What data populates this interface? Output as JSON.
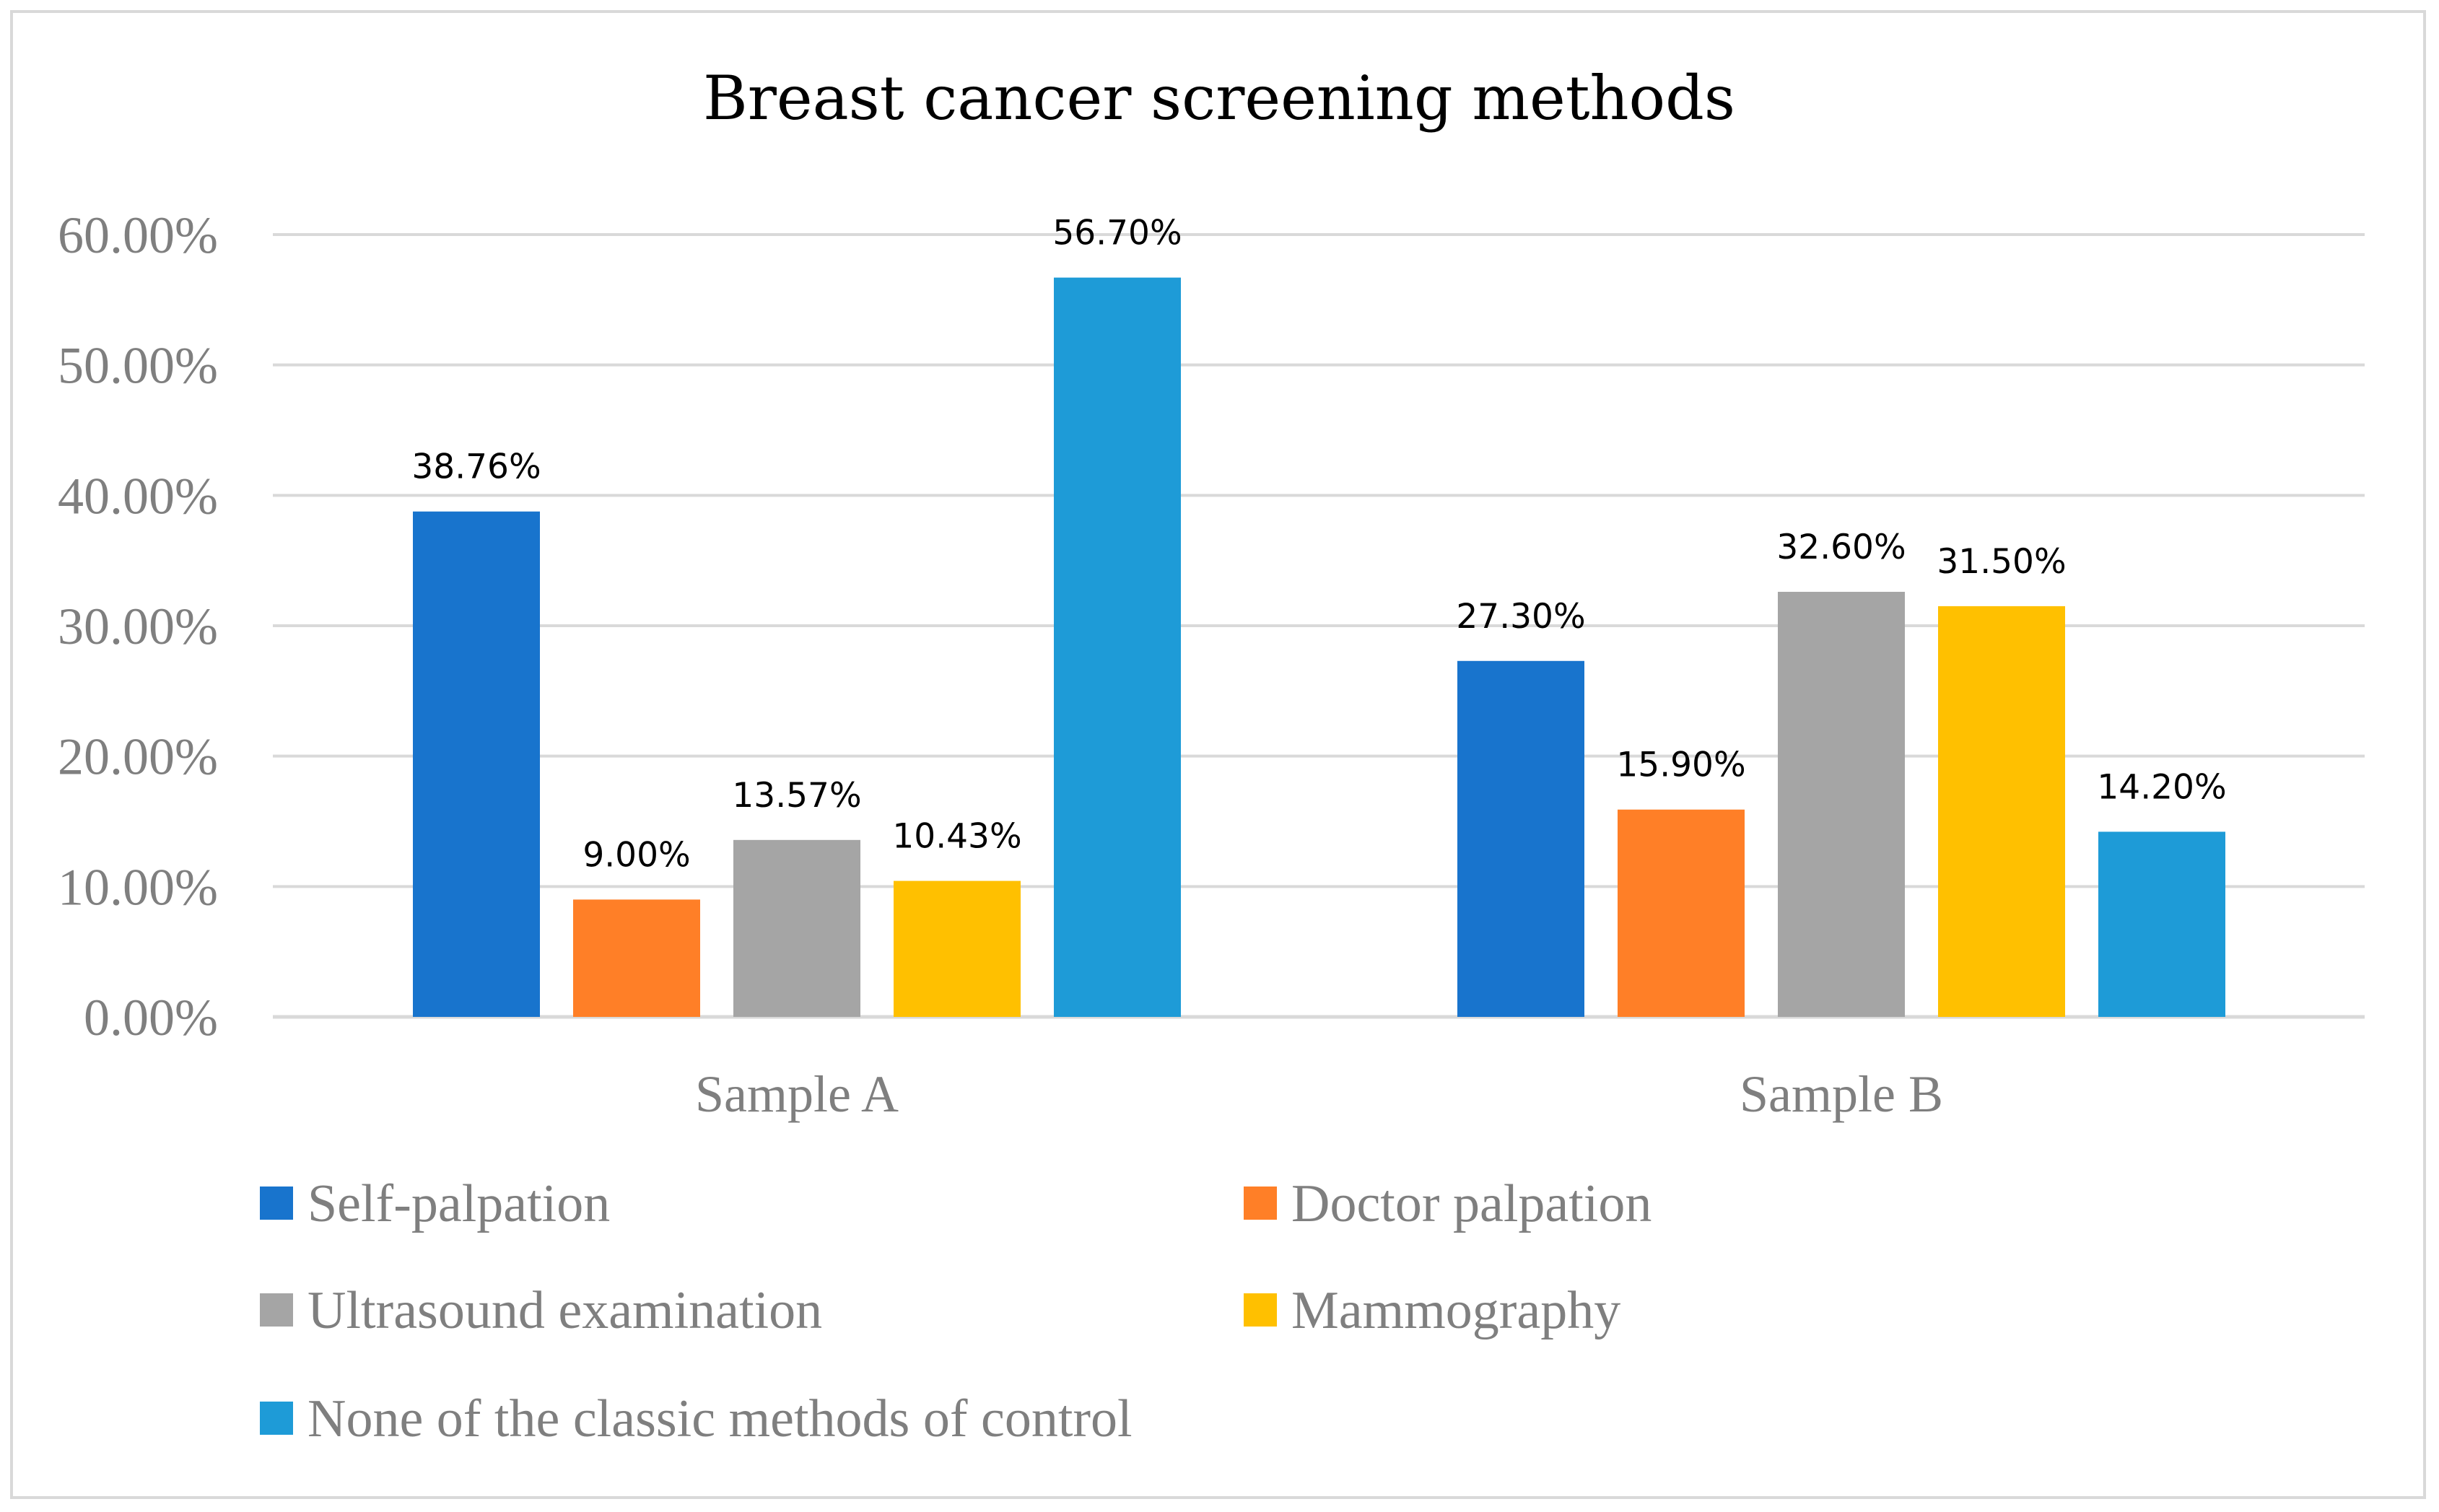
{
  "chart_data": {
    "type": "bar",
    "title": "Breast cancer screening methods",
    "categories": [
      "Sample A",
      "Sample B"
    ],
    "series": [
      {
        "name": "Self-palpation",
        "color": "#1874CD",
        "values": [
          38.76,
          27.3
        ],
        "labels": [
          "38.76%",
          "27.30%"
        ]
      },
      {
        "name": "Doctor palpation",
        "color": "#FF7F27",
        "values": [
          9.0,
          15.9
        ],
        "labels": [
          "9.00%",
          "15.90%"
        ]
      },
      {
        "name": "Ultrasound examination",
        "color": "#A5A5A5",
        "values": [
          13.57,
          32.6
        ],
        "labels": [
          "13.57%",
          "32.60%"
        ]
      },
      {
        "name": "Mammography",
        "color": "#FFC000",
        "values": [
          10.43,
          31.5
        ],
        "labels": [
          "10.43%",
          "31.50%"
        ]
      },
      {
        "name": "None of the classic methods of control",
        "color": "#1E9BD7",
        "values": [
          56.7,
          14.2
        ],
        "labels": [
          "56.70%",
          "14.20%"
        ]
      }
    ],
    "ylim": [
      0,
      60
    ],
    "yticks": [
      0,
      10,
      20,
      30,
      40,
      50,
      60
    ],
    "ytick_labels": [
      "0.00%",
      "10.00%",
      "20.00%",
      "30.00%",
      "40.00%",
      "50.00%",
      "60.00%"
    ],
    "xlabel": "",
    "ylabel": "",
    "grid": true,
    "legend": "bottom"
  }
}
